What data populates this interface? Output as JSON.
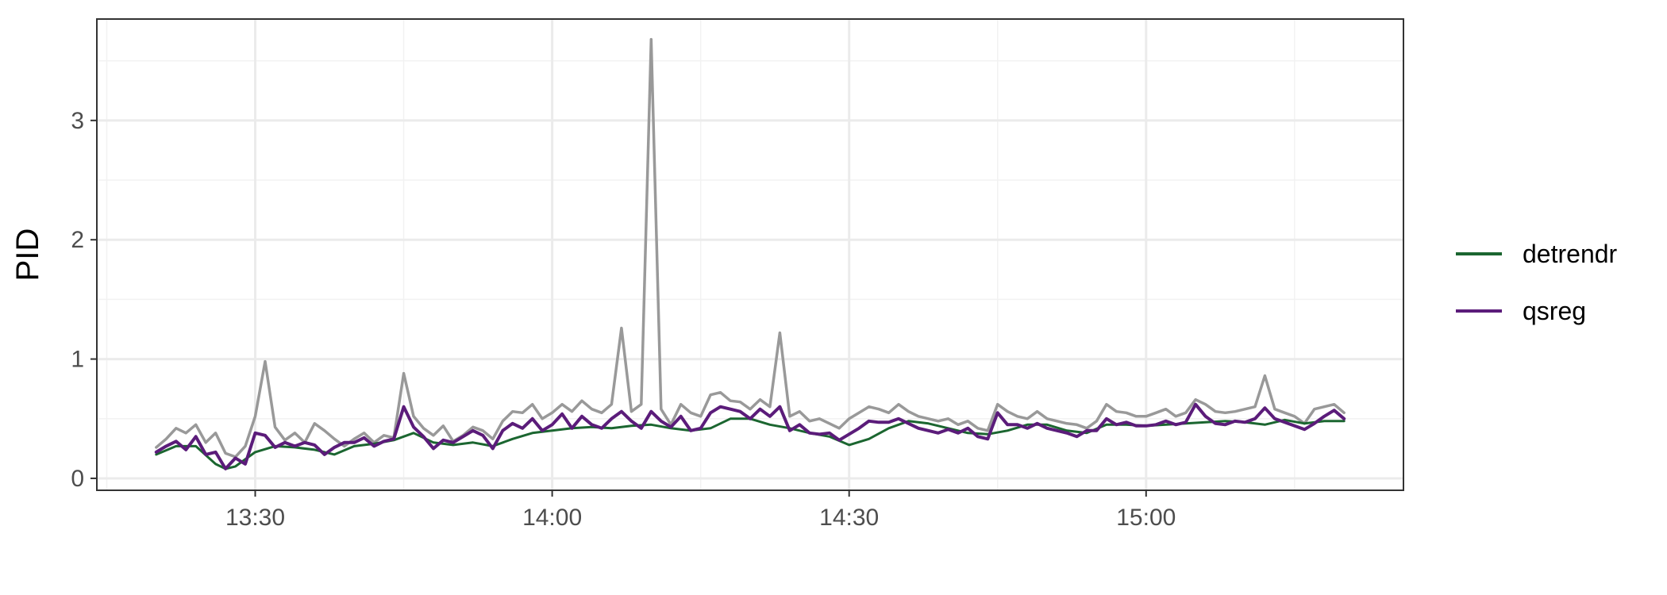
{
  "chart_data": {
    "type": "line",
    "title": "",
    "xlabel": "",
    "ylabel": "PID",
    "x_ticks": [
      "13:30",
      "14:00",
      "14:30",
      "15:00"
    ],
    "y_ticks": [
      "0",
      "1",
      "2",
      "3"
    ],
    "xlim": [
      "13:14",
      "15:26"
    ],
    "ylim": [
      -0.1,
      3.85
    ],
    "grid": true,
    "legend_position": "right",
    "colors": {
      "raw": "#999999",
      "detrendr": "#1b6630",
      "qsreg": "#5b1c7a"
    },
    "series": [
      {
        "key": "raw",
        "x": [
          "13:20",
          "13:21",
          "13:22",
          "13:23",
          "13:24",
          "13:25",
          "13:26",
          "13:27",
          "13:28",
          "13:29",
          "13:30",
          "13:31",
          "13:32",
          "13:33",
          "13:34",
          "13:35",
          "13:36",
          "13:37",
          "13:38",
          "13:39",
          "13:40",
          "13:41",
          "13:42",
          "13:43",
          "13:44",
          "13:45",
          "13:46",
          "13:47",
          "13:48",
          "13:49",
          "13:50",
          "13:51",
          "13:52",
          "13:53",
          "13:54",
          "13:55",
          "13:56",
          "13:57",
          "13:58",
          "13:59",
          "14:00",
          "14:01",
          "14:02",
          "14:03",
          "14:04",
          "14:05",
          "14:06",
          "14:07",
          "14:08",
          "14:09",
          "14:10",
          "14:11",
          "14:12",
          "14:13",
          "14:14",
          "14:15",
          "14:16",
          "14:17",
          "14:18",
          "14:19",
          "14:20",
          "14:21",
          "14:22",
          "14:23",
          "14:24",
          "14:25",
          "14:26",
          "14:27",
          "14:28",
          "14:29",
          "14:30",
          "14:31",
          "14:32",
          "14:33",
          "14:34",
          "14:35",
          "14:36",
          "14:37",
          "14:38",
          "14:39",
          "14:40",
          "14:41",
          "14:42",
          "14:43",
          "14:44",
          "14:45",
          "14:46",
          "14:47",
          "14:48",
          "14:49",
          "14:50",
          "14:51",
          "14:52",
          "14:53",
          "14:54",
          "14:55",
          "14:56",
          "14:57",
          "14:58",
          "14:59",
          "15:00",
          "15:01",
          "15:02",
          "15:03",
          "15:04",
          "15:05",
          "15:06",
          "15:07",
          "15:08",
          "15:09",
          "15:10",
          "15:11",
          "15:12",
          "15:13",
          "15:14",
          "15:15",
          "15:16",
          "15:17",
          "15:18",
          "15:19",
          "15:20"
        ],
        "values": [
          0.26,
          0.33,
          0.42,
          0.38,
          0.45,
          0.3,
          0.38,
          0.21,
          0.18,
          0.27,
          0.52,
          0.98,
          0.43,
          0.32,
          0.38,
          0.3,
          0.46,
          0.4,
          0.33,
          0.27,
          0.33,
          0.38,
          0.3,
          0.36,
          0.34,
          0.88,
          0.52,
          0.42,
          0.36,
          0.44,
          0.31,
          0.36,
          0.43,
          0.4,
          0.33,
          0.48,
          0.56,
          0.55,
          0.62,
          0.5,
          0.55,
          0.62,
          0.56,
          0.65,
          0.58,
          0.55,
          0.62,
          1.26,
          0.56,
          0.62,
          3.68,
          0.58,
          0.45,
          0.62,
          0.55,
          0.52,
          0.7,
          0.72,
          0.65,
          0.64,
          0.58,
          0.66,
          0.6,
          1.22,
          0.52,
          0.56,
          0.48,
          0.5,
          0.46,
          0.42,
          0.5,
          0.55,
          0.6,
          0.58,
          0.55,
          0.62,
          0.56,
          0.52,
          0.5,
          0.48,
          0.5,
          0.45,
          0.48,
          0.42,
          0.4,
          0.62,
          0.56,
          0.52,
          0.5,
          0.56,
          0.5,
          0.48,
          0.46,
          0.45,
          0.42,
          0.48,
          0.62,
          0.56,
          0.55,
          0.52,
          0.52,
          0.55,
          0.58,
          0.52,
          0.55,
          0.66,
          0.62,
          0.56,
          0.55,
          0.56,
          0.58,
          0.6,
          0.86,
          0.58,
          0.55,
          0.52,
          0.46,
          0.58,
          0.6,
          0.62,
          0.55
        ]
      },
      {
        "key": "qsreg",
        "name": "qsreg",
        "x": [
          "13:20",
          "13:21",
          "13:22",
          "13:23",
          "13:24",
          "13:25",
          "13:26",
          "13:27",
          "13:28",
          "13:29",
          "13:30",
          "13:31",
          "13:32",
          "13:33",
          "13:34",
          "13:35",
          "13:36",
          "13:37",
          "13:38",
          "13:39",
          "13:40",
          "13:41",
          "13:42",
          "13:43",
          "13:44",
          "13:45",
          "13:46",
          "13:47",
          "13:48",
          "13:49",
          "13:50",
          "13:51",
          "13:52",
          "13:53",
          "13:54",
          "13:55",
          "13:56",
          "13:57",
          "13:58",
          "13:59",
          "14:00",
          "14:01",
          "14:02",
          "14:03",
          "14:04",
          "14:05",
          "14:06",
          "14:07",
          "14:08",
          "14:09",
          "14:10",
          "14:11",
          "14:12",
          "14:13",
          "14:14",
          "14:15",
          "14:16",
          "14:17",
          "14:18",
          "14:19",
          "14:20",
          "14:21",
          "14:22",
          "14:23",
          "14:24",
          "14:25",
          "14:26",
          "14:27",
          "14:28",
          "14:29",
          "14:30",
          "14:31",
          "14:32",
          "14:33",
          "14:34",
          "14:35",
          "14:36",
          "14:37",
          "14:38",
          "14:39",
          "14:40",
          "14:41",
          "14:42",
          "14:43",
          "14:44",
          "14:45",
          "14:46",
          "14:47",
          "14:48",
          "14:49",
          "14:50",
          "14:51",
          "14:52",
          "14:53",
          "14:54",
          "14:55",
          "14:56",
          "14:57",
          "14:58",
          "14:59",
          "15:00",
          "15:01",
          "15:02",
          "15:03",
          "15:04",
          "15:05",
          "15:06",
          "15:07",
          "15:08",
          "15:09",
          "15:10",
          "15:11",
          "15:12",
          "15:13",
          "15:14",
          "15:15",
          "15:16",
          "15:17",
          "15:18",
          "15:19",
          "15:20"
        ],
        "values": [
          0.22,
          0.27,
          0.31,
          0.24,
          0.35,
          0.2,
          0.22,
          0.08,
          0.17,
          0.12,
          0.38,
          0.36,
          0.26,
          0.3,
          0.27,
          0.3,
          0.28,
          0.2,
          0.26,
          0.3,
          0.3,
          0.34,
          0.27,
          0.31,
          0.33,
          0.6,
          0.43,
          0.35,
          0.25,
          0.32,
          0.3,
          0.35,
          0.4,
          0.36,
          0.25,
          0.4,
          0.46,
          0.42,
          0.5,
          0.4,
          0.45,
          0.54,
          0.42,
          0.52,
          0.45,
          0.42,
          0.5,
          0.56,
          0.48,
          0.42,
          0.56,
          0.48,
          0.43,
          0.52,
          0.4,
          0.42,
          0.55,
          0.6,
          0.58,
          0.56,
          0.5,
          0.58,
          0.52,
          0.6,
          0.4,
          0.45,
          0.38,
          0.37,
          0.38,
          0.32,
          0.37,
          0.42,
          0.48,
          0.47,
          0.47,
          0.5,
          0.46,
          0.42,
          0.4,
          0.38,
          0.41,
          0.38,
          0.42,
          0.35,
          0.33,
          0.55,
          0.45,
          0.45,
          0.42,
          0.46,
          0.42,
          0.4,
          0.38,
          0.35,
          0.4,
          0.4,
          0.5,
          0.45,
          0.47,
          0.44,
          0.44,
          0.45,
          0.48,
          0.45,
          0.47,
          0.62,
          0.52,
          0.46,
          0.45,
          0.48,
          0.47,
          0.5,
          0.59,
          0.5,
          0.47,
          0.44,
          0.41,
          0.46,
          0.52,
          0.57,
          0.5
        ]
      },
      {
        "key": "detrendr",
        "name": "detrendr",
        "x": [
          "13:20",
          "13:22",
          "13:24",
          "13:26",
          "13:27",
          "13:28",
          "13:30",
          "13:32",
          "13:34",
          "13:36",
          "13:38",
          "13:40",
          "13:42",
          "13:44",
          "13:46",
          "13:48",
          "13:50",
          "13:52",
          "13:54",
          "13:56",
          "13:58",
          "14:00",
          "14:02",
          "14:04",
          "14:06",
          "14:08",
          "14:10",
          "14:12",
          "14:14",
          "14:16",
          "14:18",
          "14:20",
          "14:22",
          "14:24",
          "14:26",
          "14:28",
          "14:30",
          "14:32",
          "14:34",
          "14:36",
          "14:38",
          "14:40",
          "14:42",
          "14:44",
          "14:46",
          "14:48",
          "14:50",
          "14:52",
          "14:54",
          "14:56",
          "14:58",
          "15:00",
          "15:02",
          "15:04",
          "15:06",
          "15:08",
          "15:10",
          "15:12",
          "15:14",
          "15:16",
          "15:18",
          "15:20"
        ],
        "values": [
          0.2,
          0.27,
          0.27,
          0.12,
          0.08,
          0.1,
          0.22,
          0.27,
          0.26,
          0.24,
          0.2,
          0.27,
          0.29,
          0.32,
          0.38,
          0.3,
          0.28,
          0.3,
          0.27,
          0.33,
          0.38,
          0.4,
          0.42,
          0.43,
          0.42,
          0.44,
          0.45,
          0.42,
          0.4,
          0.42,
          0.5,
          0.5,
          0.45,
          0.42,
          0.38,
          0.35,
          0.28,
          0.33,
          0.42,
          0.48,
          0.46,
          0.42,
          0.38,
          0.37,
          0.4,
          0.45,
          0.45,
          0.4,
          0.38,
          0.45,
          0.45,
          0.44,
          0.45,
          0.46,
          0.47,
          0.48,
          0.47,
          0.45,
          0.49,
          0.46,
          0.48,
          0.48
        ]
      }
    ]
  }
}
